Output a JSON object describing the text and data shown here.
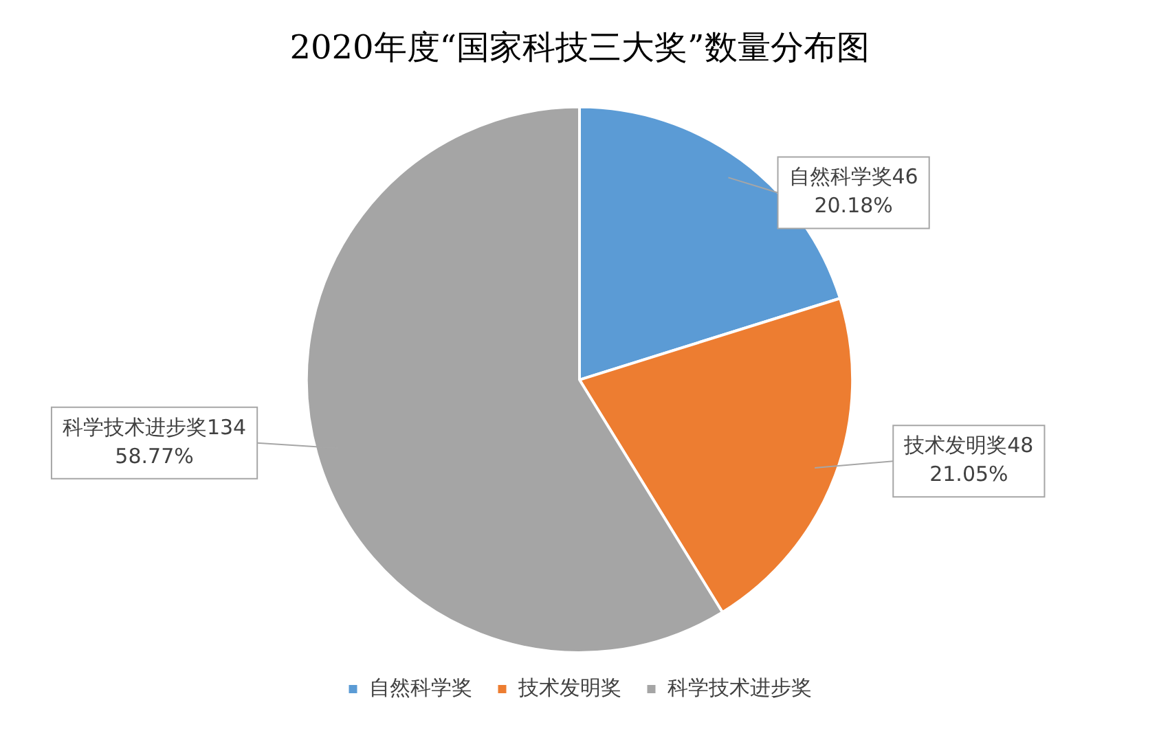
{
  "chart_data": {
    "type": "pie",
    "title": "2020年度“国家科技三大奖”数量分布图",
    "categories": [
      "自然科学奖",
      "技术发明奖",
      "科学技术进步奖"
    ],
    "values": [
      46,
      48,
      134
    ],
    "colors": [
      "#5b9bd5",
      "#ed7d31",
      "#a5a5a5"
    ],
    "value_labels": [
      "46\n20.18%",
      "48\n21.05%",
      "134\n58.77%"
    ],
    "legend": "bottom"
  }
}
